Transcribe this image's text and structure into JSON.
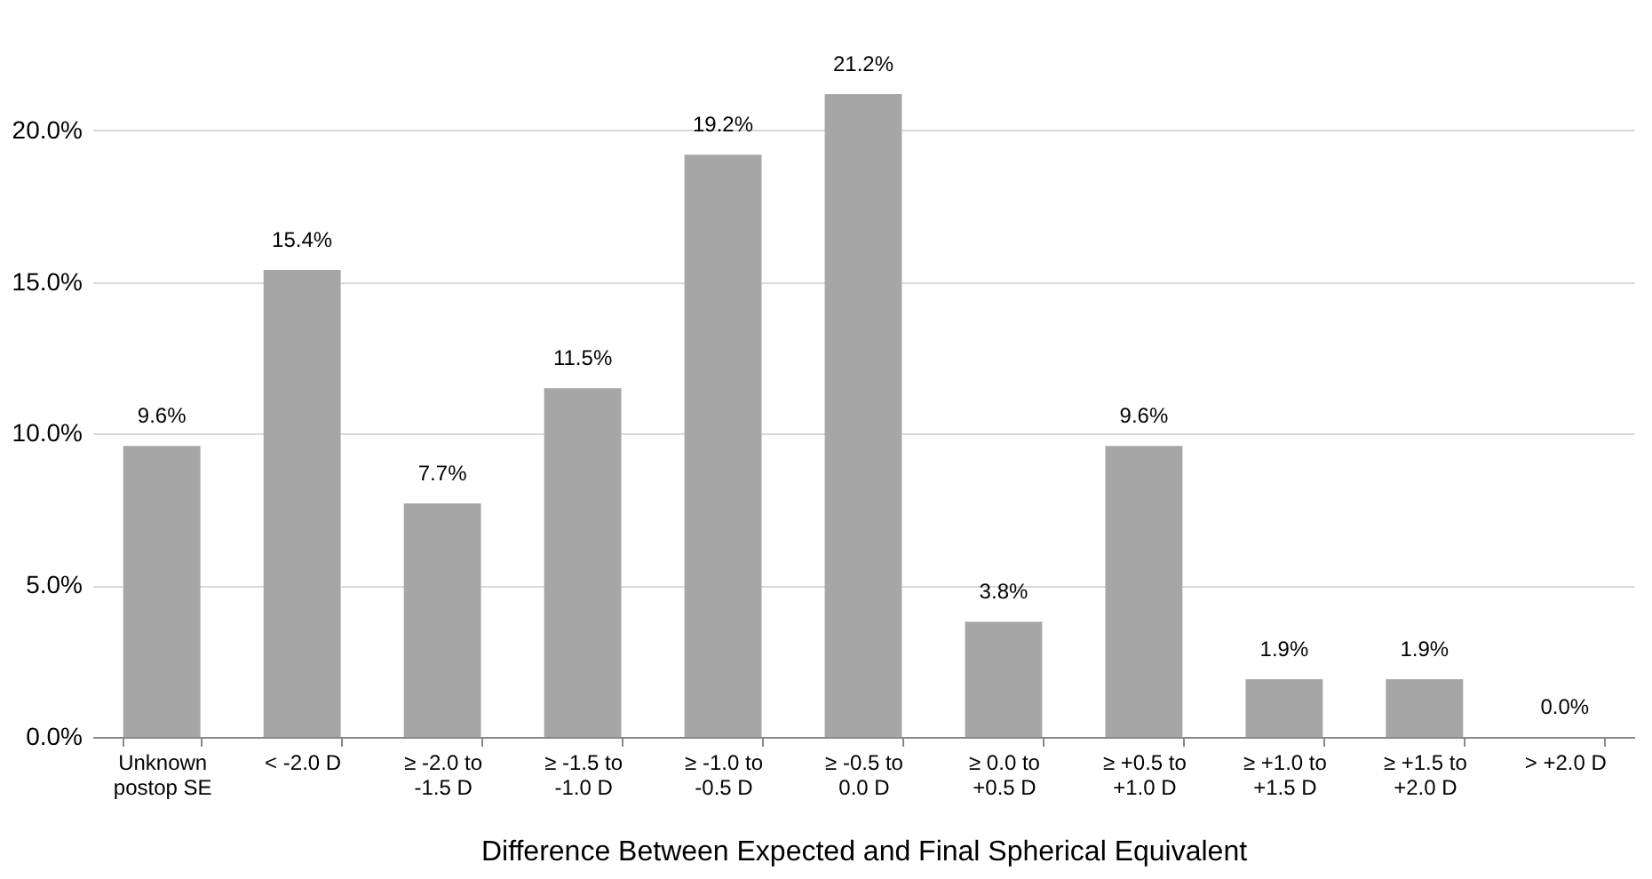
{
  "chart_data": {
    "type": "bar",
    "xlabel": "Difference Between Expected and Final Spherical Equivalent",
    "categories": [
      "Unknown\npostop SE",
      "< -2.0 D",
      "≥ -2.0 to\n-1.5 D",
      "≥ -1.5 to\n-1.0 D",
      "≥ -1.0 to\n-0.5 D",
      "≥ -0.5 to\n0.0 D",
      "≥ 0.0 to\n+0.5 D",
      "≥ +0.5 to\n+1.0 D",
      "≥ +1.0 to\n+1.5 D",
      "≥ +1.5 to\n+2.0 D",
      "> +2.0 D"
    ],
    "values": [
      9.6,
      15.4,
      7.7,
      11.5,
      19.2,
      21.2,
      3.8,
      9.6,
      1.9,
      1.9,
      0.0
    ],
    "value_labels": [
      "9.6%",
      "15.4%",
      "7.7%",
      "11.5%",
      "19.2%",
      "21.2%",
      "3.8%",
      "9.6%",
      "1.9%",
      "1.9%",
      "0.0%"
    ],
    "color": "#a6a6a6",
    "ylim": [
      0,
      21.2
    ],
    "yticks": [
      {
        "value": 0,
        "label": "0.0%"
      },
      {
        "value": 5,
        "label": "5.0%"
      },
      {
        "value": 10,
        "label": "10.0%"
      },
      {
        "value": 15,
        "label": "15.0%"
      },
      {
        "value": 20,
        "label": "20.0%"
      }
    ],
    "grid": "y"
  }
}
